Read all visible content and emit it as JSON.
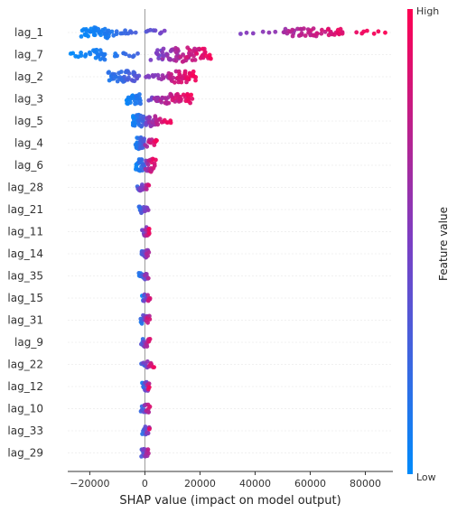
{
  "chart_data": {
    "type": "scatter",
    "subtype": "shap_beeswarm",
    "xlabel": "SHAP value (impact on model output)",
    "xticks": [
      -20000,
      0,
      20000,
      40000,
      60000,
      80000
    ],
    "xlim": [
      -28000,
      90000
    ],
    "colorbar": {
      "label": "Feature value",
      "high": "High",
      "low": "Low",
      "low_color": "#008bfb",
      "high_color": "#ff0052"
    },
    "features": [
      {
        "name": "lag_1",
        "groups": [
          {
            "xmin": -24000,
            "xmax": -11000,
            "n": 40,
            "c0": 0.0,
            "c1": 0.15,
            "spread": 7
          },
          {
            "xmin": -11000,
            "xmax": -3000,
            "n": 10,
            "c0": 0.15,
            "c1": 0.3,
            "spread": 3
          },
          {
            "xmin": -500,
            "xmax": 8000,
            "n": 8,
            "c0": 0.3,
            "c1": 0.5,
            "spread": 3
          },
          {
            "xmin": 34000,
            "xmax": 48000,
            "n": 6,
            "c0": 0.5,
            "c1": 0.6,
            "spread": 2
          },
          {
            "xmin": 48000,
            "xmax": 74000,
            "n": 50,
            "c0": 0.6,
            "c1": 0.95,
            "spread": 5
          },
          {
            "xmin": 75000,
            "xmax": 88000,
            "n": 7,
            "c0": 0.9,
            "c1": 1.0,
            "spread": 2
          }
        ]
      },
      {
        "name": "lag_7",
        "groups": [
          {
            "xmin": -27000,
            "xmax": -19000,
            "n": 10,
            "c0": 0.0,
            "c1": 0.1,
            "spread": 3
          },
          {
            "xmin": -19000,
            "xmax": -14000,
            "n": 18,
            "c0": 0.05,
            "c1": 0.15,
            "spread": 7
          },
          {
            "xmin": -12000,
            "xmax": -2000,
            "n": 10,
            "c0": 0.1,
            "c1": 0.3,
            "spread": 3
          },
          {
            "xmin": 2000,
            "xmax": 25000,
            "n": 75,
            "c0": 0.4,
            "c1": 1.0,
            "spread": 8
          }
        ]
      },
      {
        "name": "lag_2",
        "groups": [
          {
            "xmin": -14000,
            "xmax": -1000,
            "n": 40,
            "c0": 0.1,
            "c1": 0.4,
            "spread": 7
          },
          {
            "xmin": 0,
            "xmax": 10000,
            "n": 15,
            "c0": 0.45,
            "c1": 0.7,
            "spread": 3
          },
          {
            "xmin": 8000,
            "xmax": 19000,
            "n": 40,
            "c0": 0.7,
            "c1": 1.0,
            "spread": 7
          }
        ]
      },
      {
        "name": "lag_3",
        "groups": [
          {
            "xmin": -7000,
            "xmax": -1000,
            "n": 25,
            "c0": 0.0,
            "c1": 0.2,
            "spread": 7
          },
          {
            "xmin": 1000,
            "xmax": 6000,
            "n": 8,
            "c0": 0.4,
            "c1": 0.6,
            "spread": 3
          },
          {
            "xmin": 3000,
            "xmax": 18000,
            "n": 45,
            "c0": 0.55,
            "c1": 1.0,
            "spread": 6
          }
        ]
      },
      {
        "name": "lag_5",
        "groups": [
          {
            "xmin": -5000,
            "xmax": 0,
            "n": 30,
            "c0": 0.0,
            "c1": 0.3,
            "spread": 7
          },
          {
            "xmin": 0,
            "xmax": 5000,
            "n": 25,
            "c0": 0.4,
            "c1": 0.8,
            "spread": 6
          },
          {
            "xmin": 5000,
            "xmax": 10000,
            "n": 8,
            "c0": 0.8,
            "c1": 1.0,
            "spread": 3
          }
        ]
      },
      {
        "name": "lag_4",
        "groups": [
          {
            "xmin": -3500,
            "xmax": 0,
            "n": 30,
            "c0": 0.0,
            "c1": 0.4,
            "spread": 7
          },
          {
            "xmin": 0,
            "xmax": 5000,
            "n": 14,
            "c0": 0.6,
            "c1": 1.0,
            "spread": 5
          }
        ]
      },
      {
        "name": "lag_6",
        "groups": [
          {
            "xmin": -3500,
            "xmax": 0,
            "n": 22,
            "c0": 0.0,
            "c1": 0.3,
            "spread": 7
          },
          {
            "xmin": 0,
            "xmax": 4000,
            "n": 22,
            "c0": 0.5,
            "c1": 1.0,
            "spread": 8
          }
        ]
      },
      {
        "name": "lag_28",
        "groups": [
          {
            "xmin": -3000,
            "xmax": 1500,
            "n": 18,
            "c0": 0.2,
            "c1": 0.9,
            "spread": 4
          }
        ]
      },
      {
        "name": "lag_21",
        "groups": [
          {
            "xmin": -2500,
            "xmax": 1500,
            "n": 18,
            "c0": 0.0,
            "c1": 0.7,
            "spread": 4
          }
        ]
      },
      {
        "name": "lag_11",
        "groups": [
          {
            "xmin": -1000,
            "xmax": 2000,
            "n": 16,
            "c0": 0.3,
            "c1": 1.0,
            "spread": 5
          }
        ]
      },
      {
        "name": "lag_14",
        "groups": [
          {
            "xmin": -1500,
            "xmax": 1500,
            "n": 16,
            "c0": 0.1,
            "c1": 0.8,
            "spread": 5
          }
        ]
      },
      {
        "name": "lag_35",
        "groups": [
          {
            "xmin": -2500,
            "xmax": 1500,
            "n": 16,
            "c0": 0.0,
            "c1": 0.8,
            "spread": 4
          }
        ]
      },
      {
        "name": "lag_15",
        "groups": [
          {
            "xmin": -1000,
            "xmax": 2000,
            "n": 16,
            "c0": 0.0,
            "c1": 1.0,
            "spread": 5
          }
        ]
      },
      {
        "name": "lag_31",
        "groups": [
          {
            "xmin": -2000,
            "xmax": 2000,
            "n": 18,
            "c0": 0.0,
            "c1": 1.0,
            "spread": 6
          }
        ]
      },
      {
        "name": "lag_9",
        "groups": [
          {
            "xmin": -1500,
            "xmax": 2000,
            "n": 16,
            "c0": 0.1,
            "c1": 1.0,
            "spread": 5
          }
        ]
      },
      {
        "name": "lag_22",
        "groups": [
          {
            "xmin": -1500,
            "xmax": 3500,
            "n": 16,
            "c0": 0.1,
            "c1": 1.0,
            "spread": 4
          }
        ]
      },
      {
        "name": "lag_12",
        "groups": [
          {
            "xmin": -1000,
            "xmax": 2000,
            "n": 16,
            "c0": 0.0,
            "c1": 1.0,
            "spread": 5
          }
        ]
      },
      {
        "name": "lag_10",
        "groups": [
          {
            "xmin": -1500,
            "xmax": 2000,
            "n": 16,
            "c0": 0.0,
            "c1": 1.0,
            "spread": 5
          }
        ]
      },
      {
        "name": "lag_33",
        "groups": [
          {
            "xmin": -1000,
            "xmax": 2000,
            "n": 16,
            "c0": 0.0,
            "c1": 1.0,
            "spread": 5
          }
        ]
      },
      {
        "name": "lag_29",
        "groups": [
          {
            "xmin": -1500,
            "xmax": 1500,
            "n": 16,
            "c0": 0.2,
            "c1": 0.8,
            "spread": 5
          }
        ]
      }
    ]
  }
}
